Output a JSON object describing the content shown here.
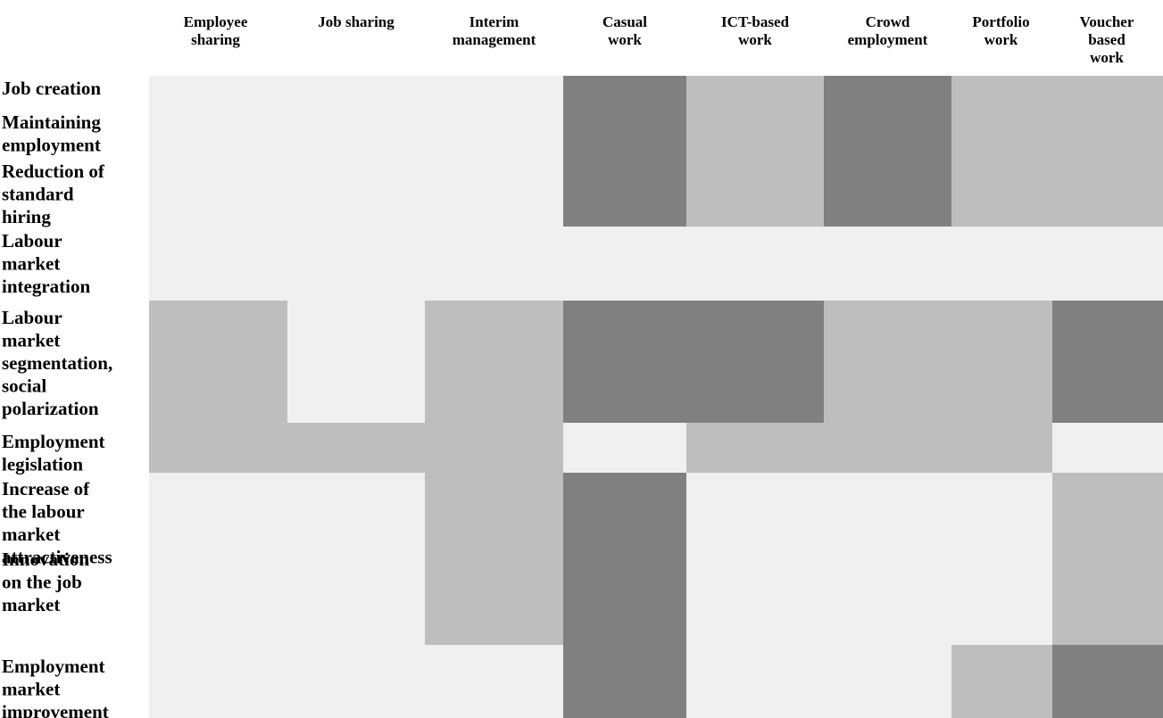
{
  "colors": {
    "low": "#f0f0f0",
    "medium": "#bebebe",
    "high": "#808080"
  },
  "chart_data": {
    "type": "heatmap",
    "levels": [
      "low",
      "medium",
      "high"
    ],
    "columns": [
      "Employee sharing",
      "Job sharing",
      "Interim management",
      "Casual work",
      "ICT-based work",
      "Crowd employment",
      "Portfolio work",
      "Voucher based work"
    ],
    "rows": [
      "Job creation",
      "Maintaining employment",
      "Reduction of standard hiring",
      "Labour market integration",
      "Labour market segmentation, social polarization",
      "Employment legislation",
      "Increase of the labour market attractiveness",
      "Innovation on the job market",
      "Employment market improvement"
    ],
    "values": [
      [
        "low",
        "low",
        "low",
        "high",
        "medium",
        "high",
        "medium",
        "medium"
      ],
      [
        "low",
        "low",
        "low",
        "high",
        "medium",
        "high",
        "medium",
        "medium"
      ],
      [
        "low",
        "low",
        "low",
        "high",
        "medium",
        "high",
        "medium",
        "medium"
      ],
      [
        "low",
        "low",
        "low",
        "low",
        "low",
        "low",
        "low",
        "low"
      ],
      [
        "medium",
        "low",
        "medium",
        "high",
        "high",
        "medium",
        "medium",
        "high"
      ],
      [
        "medium",
        "medium",
        "medium",
        "low",
        "medium",
        "medium",
        "medium",
        "low"
      ],
      [
        "low",
        "low",
        "medium",
        "high",
        "low",
        "low",
        "low",
        "medium"
      ],
      [
        "low",
        "low",
        "medium",
        "high",
        "low",
        "low",
        "low",
        "medium"
      ],
      [
        "low",
        "low",
        "low",
        "high",
        "low",
        "low",
        "medium",
        "high"
      ]
    ]
  }
}
